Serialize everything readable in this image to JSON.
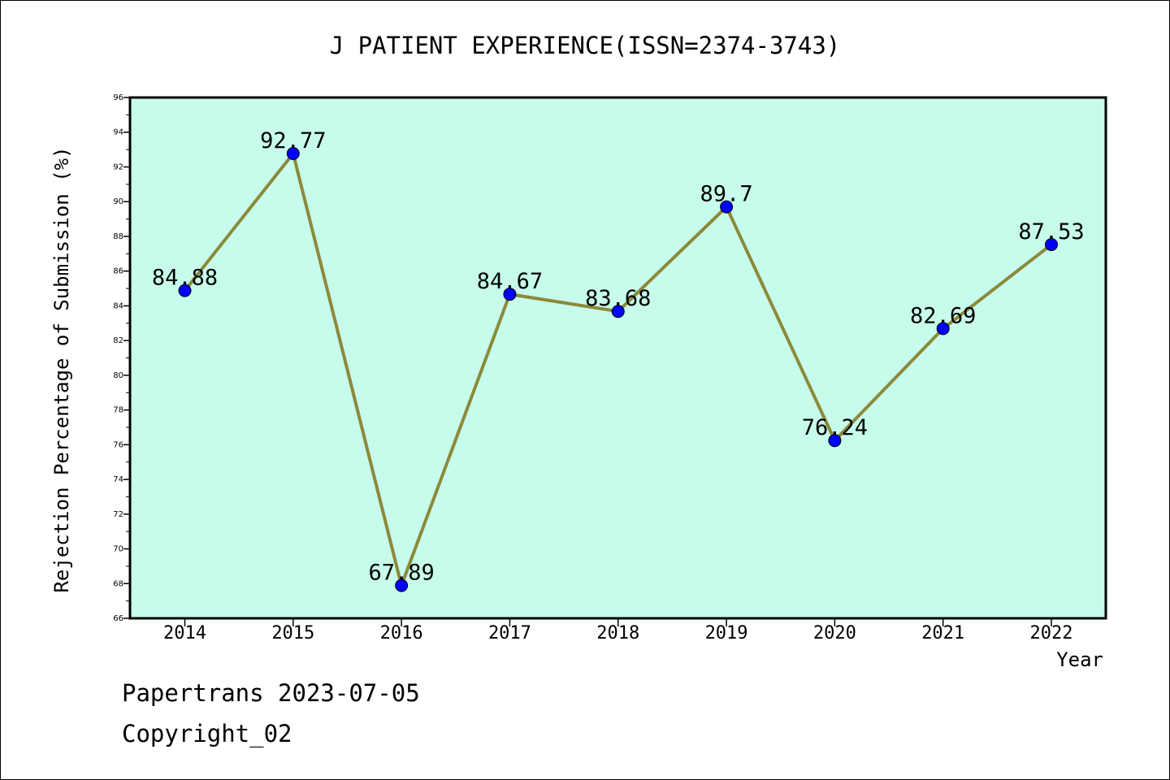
{
  "chart_data": {
    "type": "line",
    "title": "J PATIENT EXPERIENCE(ISSN=2374-3743)",
    "xlabel": "Year",
    "ylabel": "Rejection Percentage of Submission (%)",
    "categories": [
      "2014",
      "2015",
      "2016",
      "2017",
      "2018",
      "2019",
      "2020",
      "2021",
      "2022"
    ],
    "values": [
      84.88,
      92.77,
      67.89,
      84.67,
      83.68,
      89.7,
      76.24,
      82.69,
      87.53
    ],
    "value_labels": [
      "84.88",
      "92.77",
      "67.89",
      "84.67",
      "83.68",
      "89.7",
      "76.24",
      "82.69",
      "87.53"
    ],
    "ylim": [
      66,
      96
    ],
    "yticks": [
      "66",
      "68",
      "70",
      "72",
      "74",
      "76",
      "78",
      "80",
      "82",
      "84",
      "86",
      "88",
      "90",
      "92",
      "94",
      "96"
    ],
    "grid": false,
    "colors": {
      "plot_background": "#c7fcec",
      "line": "#8b8a3a",
      "marker": "#0000ff"
    }
  },
  "footer": {
    "source": "Papertrans 2023-07-05",
    "copyright": "Copyright_02"
  }
}
